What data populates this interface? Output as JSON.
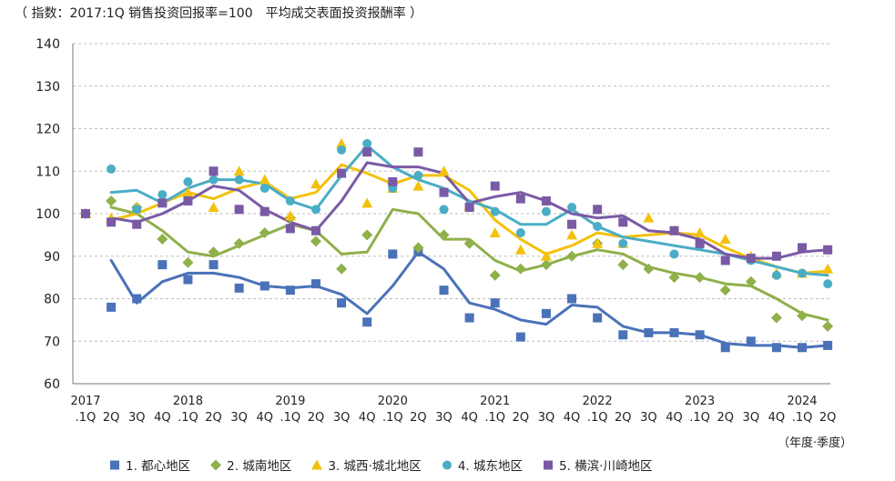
{
  "header_note": "（ 指数：2017:1Q 销售投资回报率=100　平均成交表面投资报酬率 ）",
  "unit_note": "（年度·季度）",
  "chart_data": {
    "type": "scatter",
    "note": "Markers show quarterly index values; lines show moving averages.",
    "yticks": [
      "140",
      "130",
      "120",
      "110",
      "100",
      "90",
      "80",
      "70",
      "60"
    ],
    "ylim": [
      60,
      140
    ],
    "grid": true,
    "legend_position": "bottom",
    "x_year_labels": [
      "2017",
      "2018",
      "2019",
      "2020",
      "2021",
      "2022",
      "2023",
      "2024"
    ],
    "x_quarter_labels": [
      ".1Q",
      "2Q",
      "3Q",
      "4Q",
      ".1Q",
      "2Q",
      "3Q",
      "4Q",
      ".1Q",
      "2Q",
      "3Q",
      "4Q",
      ".1Q",
      "2Q",
      "3Q",
      "4Q",
      ".1Q",
      "2Q",
      "3Q",
      "4Q",
      ".1Q",
      "2Q",
      "3Q",
      "4Q",
      ".1Q",
      "2Q",
      "3Q",
      "4Q",
      ".1Q",
      "2Q"
    ],
    "series": [
      {
        "name": "1. 都心地区",
        "color": "#4a72b8",
        "marker": "square",
        "values": [
          100,
          78,
          80,
          88,
          84.5,
          88,
          82.5,
          83,
          82,
          83.5,
          79,
          74.5,
          90.5,
          91,
          82,
          75.5,
          79,
          71,
          76.5,
          80,
          75.5,
          71.5,
          72,
          72,
          71.5,
          68.5,
          70,
          68.5,
          68.5,
          69
        ],
        "trend": [
          null,
          89,
          79,
          84,
          86,
          86,
          85,
          83,
          82.5,
          83,
          81,
          76.5,
          83,
          91,
          87,
          79,
          77.5,
          75,
          74,
          78.5,
          78,
          73.5,
          72,
          72,
          71.5,
          69.5,
          69,
          69,
          68.5,
          69
        ]
      },
      {
        "name": "2. 城南地区",
        "color": "#8fb04a",
        "marker": "diamond",
        "values": [
          100,
          103,
          101.5,
          94,
          88.5,
          91,
          93,
          95.5,
          99,
          93.5,
          87,
          95,
          107,
          92,
          95,
          93,
          85.5,
          87,
          88,
          90,
          93,
          88,
          87,
          85,
          85,
          82,
          84,
          75.5,
          76,
          73.5
        ],
        "trend": [
          null,
          101.5,
          100,
          96,
          91,
          90,
          92.5,
          95,
          97.5,
          96,
          90.5,
          91,
          101,
          100,
          94,
          94,
          89,
          86.5,
          88,
          90,
          91.5,
          90.5,
          87.5,
          86,
          85,
          83.5,
          83,
          80,
          76.5,
          75
        ]
      },
      {
        "name": "3. 城西·城北地区",
        "color": "#f3c10b",
        "marker": "triangle",
        "values": [
          100,
          99,
          101.5,
          103,
          105,
          101.5,
          110,
          108,
          99.5,
          107,
          116.5,
          102.5,
          106,
          106.5,
          110,
          102,
          95.5,
          91.5,
          90,
          95,
          93,
          93,
          99,
          96,
          95.5,
          94,
          90,
          86,
          86,
          87
        ],
        "trend": [
          null,
          98.5,
          100,
          102.5,
          105,
          103.5,
          106,
          107.5,
          103.5,
          105,
          111.5,
          109.5,
          107,
          109,
          109,
          105.5,
          98.5,
          94,
          90.5,
          92.5,
          95.5,
          94.5,
          95,
          95.5,
          95,
          92,
          89.5,
          87.5,
          86,
          86.5
        ]
      },
      {
        "name": "4. 城东地区",
        "color": "#4aadc6",
        "marker": "circle",
        "values": [
          100,
          110.5,
          101,
          104.5,
          107.5,
          108,
          108,
          106,
          103,
          101,
          115,
          116.5,
          106,
          109,
          101,
          102,
          100.5,
          95.5,
          100.5,
          101.5,
          97,
          93,
          null,
          90.5,
          92.5,
          null,
          89,
          85.5,
          86,
          83.5
        ],
        "trend": [
          null,
          105,
          105.5,
          102.5,
          106,
          108,
          108,
          107,
          103,
          101,
          109,
          116,
          111,
          108,
          106,
          103,
          101,
          97.5,
          97.5,
          101,
          97,
          94.5,
          93.5,
          92.5,
          91.5,
          90.5,
          89,
          87.5,
          86,
          85.5
        ]
      },
      {
        "name": "5. 横滨·川崎地区",
        "color": "#7a5aa5",
        "marker": "square",
        "values": [
          100,
          98,
          97.5,
          102.5,
          103,
          110,
          101,
          100.5,
          96.5,
          96,
          109.5,
          114.5,
          107.5,
          114.5,
          105,
          101.5,
          106.5,
          103.5,
          103,
          97.5,
          101,
          98,
          null,
          96,
          93,
          89,
          89.5,
          90,
          92,
          91.5
        ],
        "trend": [
          null,
          99,
          98,
          100,
          103,
          106.5,
          105.5,
          101,
          98,
          96,
          103,
          112,
          111,
          111,
          109.5,
          102.5,
          104,
          105,
          103,
          100,
          99,
          99.5,
          96,
          95.5,
          94,
          90.5,
          89.5,
          89.5,
          91,
          91.5
        ]
      }
    ]
  }
}
